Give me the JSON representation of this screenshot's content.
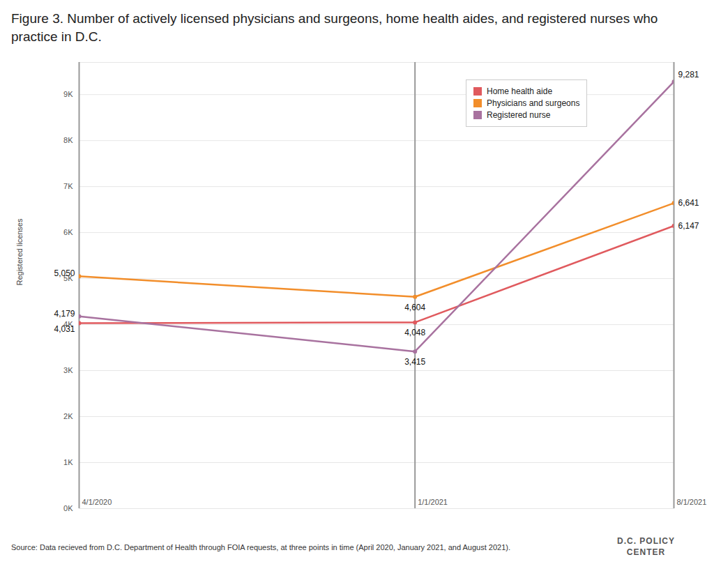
{
  "chart_data": {
    "type": "line",
    "title": "Figure 3. Number of actively licensed physicians and surgeons, home health aides, and registered nurses who practice in D.C.",
    "y_label": "Registered licenses",
    "caption": "Source: Data recieved from D.C. Department of Health through FOIA requests, at three points in time (April 2020, January 2021, and August 2021).",
    "annotations": [
      "D.C. POLICY",
      "CENTER"
    ],
    "x": [
      "4/1/2020",
      "1/1/2021",
      "8/1/2021"
    ],
    "xlim": [
      "4/1/2020",
      "8/1/2021"
    ],
    "xticks": [
      "4/1/2020",
      "1/1/2021",
      "8/1/2021"
    ],
    "series": [
      {
        "name": "Home health aide",
        "color": "#e05a5e",
        "values": [
          4031,
          4048,
          6147
        ]
      },
      {
        "name": "Physicians and surgeons",
        "color": "#f28e2b",
        "values": [
          5050,
          4604,
          6641
        ]
      },
      {
        "name": "Registered nurse",
        "color": "#a8729f",
        "values": [
          4179,
          3415,
          9281
        ]
      }
    ],
    "ylim": [
      0,
      9700
    ],
    "yticks": [
      {
        "value": 0,
        "label": "0K"
      },
      {
        "value": 1000,
        "label": "1K"
      },
      {
        "value": 2000,
        "label": "2K"
      },
      {
        "value": 3000,
        "label": "3K"
      },
      {
        "value": 4000,
        "label": "4K"
      },
      {
        "value": 5000,
        "label": "5K"
      },
      {
        "value": 6000,
        "label": "6K"
      },
      {
        "value": 7000,
        "label": "7K"
      },
      {
        "value": 8000,
        "label": "8K"
      },
      {
        "value": 9000,
        "label": "9K"
      }
    ],
    "grid": true,
    "legend": "top-right",
    "data_labels": true,
    "marker": "circle",
    "line_style": "solid"
  }
}
